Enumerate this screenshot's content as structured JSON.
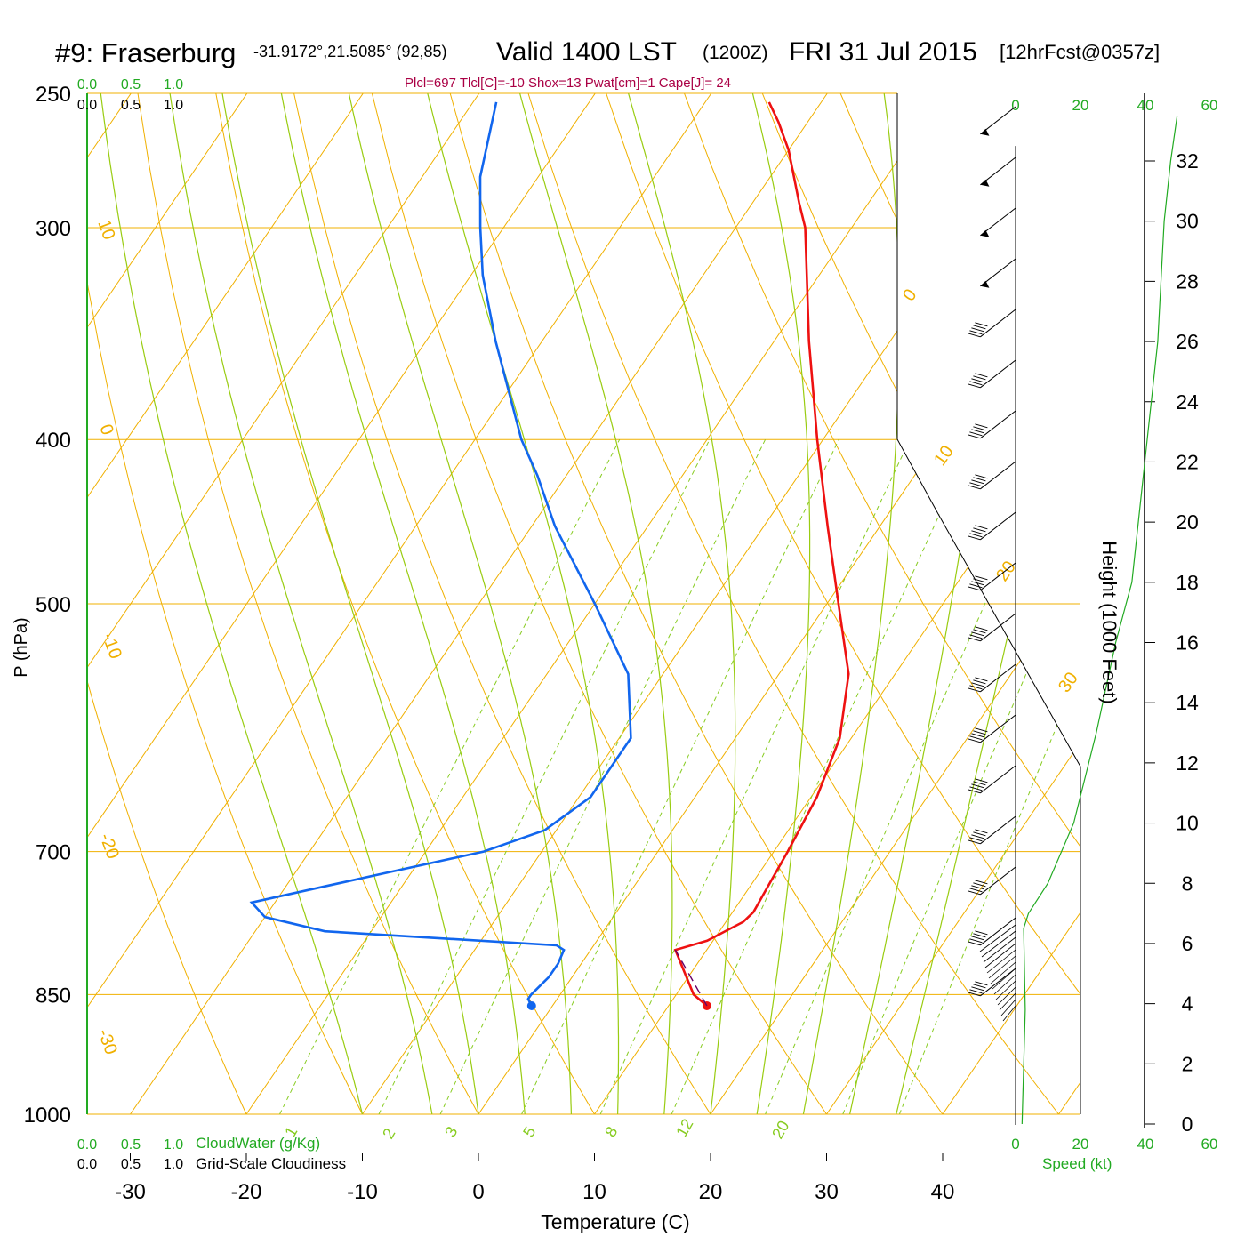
{
  "header": {
    "station": "#9: Fraserburg",
    "coords": "-31.9172°,21.5085° (92,85)",
    "valid": "Valid 1400 LST",
    "utc": "(1200Z)",
    "date": "FRI 31 Jul 2015",
    "forecast": "[12hrFcst@0357z]",
    "indices": "Plcl=697 Tlcl[C]=-10 Shox=13 Pwat[cm]=1 Cape[J]= 24"
  },
  "colors": {
    "temperature": "#ee1111",
    "dewpoint": "#1166ee",
    "isotherm": "#f0b000",
    "moist_adiabat": "#99cc11",
    "mixing_ratio": "#88cc22",
    "speed": "#22aa22",
    "indices": "#aa0044",
    "parcel": "#660066"
  },
  "chart_data": {
    "type": "line",
    "title": "#9: Fraserburg  Valid 1400 LST (1200Z) FRI 31 Jul 2015",
    "xlabel": "Temperature (C)",
    "ylabel": "P (hPa)",
    "y2label": "Height (1000 Feet)",
    "yscale": "log",
    "pressure_ticks": [
      250,
      300,
      400,
      500,
      700,
      850,
      1000
    ],
    "temperature_ticks": [
      -30,
      -20,
      -10,
      0,
      10,
      20,
      30,
      40
    ],
    "height_ticks": [
      0,
      2,
      4,
      6,
      8,
      10,
      12,
      14,
      16,
      18,
      20,
      22,
      24,
      26,
      28,
      30,
      32
    ],
    "isotherm_labels": [
      "10",
      "0",
      "-10",
      "-20",
      "-30",
      "0",
      "10",
      "20",
      "30"
    ],
    "mixing_ratio_labels": [
      "1",
      "2",
      "3",
      "5",
      "8",
      "12",
      "20"
    ],
    "speed_ticks": [
      "0",
      "20",
      "40",
      "60"
    ],
    "speed_label": "Speed (kt)",
    "cloud_scale": [
      "0.0",
      "0.5",
      "1.0"
    ],
    "cloud_water_label": "CloudWater (g/Kg)",
    "cloudiness_label": "Grid-Scale Cloudiness",
    "series": [
      {
        "name": "Temperature",
        "points": [
          [
            863,
            13.3
          ],
          [
            850,
            11.5
          ],
          [
            800,
            7.3
          ],
          [
            790,
            9.5
          ],
          [
            770,
            11.5
          ],
          [
            760,
            11.8
          ],
          [
            730,
            11.5
          ],
          [
            700,
            11.2
          ],
          [
            650,
            10.5
          ],
          [
            600,
            9.0
          ],
          [
            550,
            6.0
          ],
          [
            500,
            1.0
          ],
          [
            450,
            -4.5
          ],
          [
            400,
            -10.5
          ],
          [
            350,
            -17.0
          ],
          [
            300,
            -24.0
          ],
          [
            290,
            -26.0
          ],
          [
            270,
            -30.0
          ],
          [
            260,
            -32.5
          ],
          [
            253,
            -34.5
          ]
        ]
      },
      {
        "name": "Dew Point",
        "points": [
          [
            863,
            -1.8
          ],
          [
            855,
            -2.5
          ],
          [
            850,
            -2.5
          ],
          [
            830,
            -2.0
          ],
          [
            815,
            -2.0
          ],
          [
            800,
            -2.3
          ],
          [
            795,
            -3.2
          ],
          [
            780,
            -24.0
          ],
          [
            765,
            -30.0
          ],
          [
            750,
            -32.0
          ],
          [
            720,
            -22.0
          ],
          [
            700,
            -15.0
          ],
          [
            680,
            -11.0
          ],
          [
            650,
            -9.0
          ],
          [
            600,
            -9.0
          ],
          [
            550,
            -13.0
          ],
          [
            500,
            -20.0
          ],
          [
            450,
            -28.0
          ],
          [
            420,
            -32.5
          ],
          [
            400,
            -36.0
          ],
          [
            350,
            -44.0
          ],
          [
            320,
            -49.0
          ],
          [
            300,
            -52.0
          ],
          [
            280,
            -55.0
          ],
          [
            253,
            -58.0
          ]
        ]
      },
      {
        "name": "Parcel",
        "points": [
          [
            863,
            13.3
          ],
          [
            800,
            7.3
          ]
        ]
      }
    ],
    "wind_speed_profile_kt": [
      [
        0,
        2
      ],
      [
        3.8,
        3
      ],
      [
        6.5,
        2.5
      ],
      [
        7.0,
        4
      ],
      [
        8.0,
        10
      ],
      [
        10.0,
        18
      ],
      [
        13.0,
        25
      ],
      [
        16.0,
        31
      ],
      [
        18.0,
        36
      ],
      [
        22.0,
        40
      ],
      [
        26.0,
        44
      ],
      [
        30.0,
        46
      ],
      [
        32.0,
        48
      ],
      [
        33.5,
        50
      ]
    ],
    "cloud_water_g_kg": 0,
    "grid_scale_cloudiness": 0
  }
}
